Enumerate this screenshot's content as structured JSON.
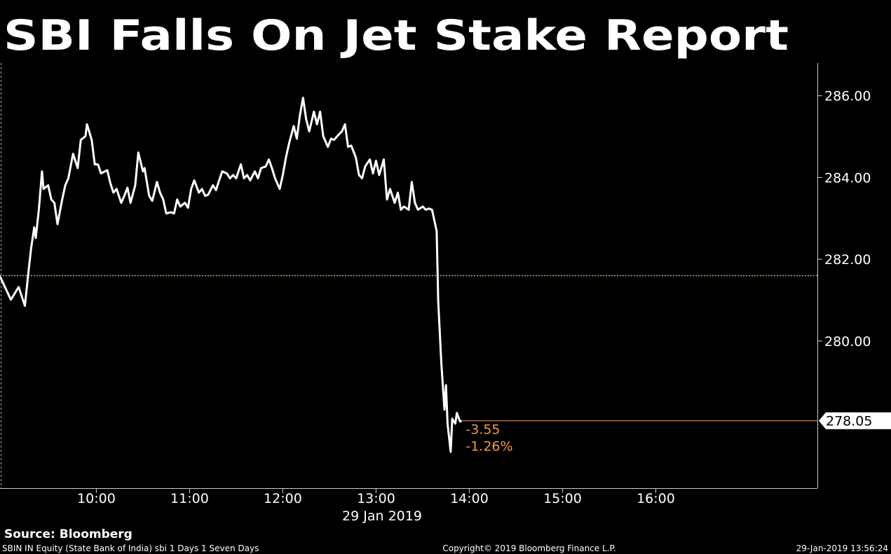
{
  "chart_data": {
    "type": "line",
    "title": "SBI Falls On Jet Stake Report",
    "x_label": "29 Jan 2019",
    "x": [
      538,
      545,
      550,
      554,
      556,
      558,
      560,
      561,
      563,
      565,
      566,
      569,
      571,
      573,
      575,
      578,
      580,
      582,
      585,
      588,
      590,
      593,
      594,
      597,
      599,
      601,
      603,
      607,
      609,
      611,
      613,
      616,
      618,
      620,
      622,
      625,
      627,
      630,
      631,
      634,
      636,
      639,
      641,
      643,
      645,
      648,
      650,
      652,
      654,
      657,
      659,
      661,
      663,
      666,
      668,
      670,
      672,
      675,
      677,
      679,
      681,
      684,
      686,
      688,
      690,
      693,
      695,
      697,
      699,
      702,
      704,
      706,
      709,
      711,
      713,
      715,
      718,
      720,
      722,
      724,
      727,
      729,
      731,
      733,
      735,
      737,
      740,
      742,
      744,
      746,
      749,
      751,
      753,
      755,
      758,
      760,
      762,
      764,
      767,
      769,
      771,
      773,
      776,
      778,
      780,
      782,
      785,
      787,
      789,
      792,
      794,
      796,
      798,
      801,
      803,
      805,
      807,
      810,
      812,
      814,
      816,
      819,
      820,
      822,
      824,
      825,
      826,
      828,
      829,
      831,
      832,
      834,
      835
    ],
    "series": [
      {
        "color": "#ffffff",
        "values": [
          281.58,
          281.01,
          281.32,
          280.86,
          281.58,
          282.26,
          282.78,
          282.52,
          283.21,
          284.15,
          283.72,
          283.81,
          283.46,
          283.38,
          282.86,
          283.46,
          283.81,
          283.98,
          284.58,
          284.23,
          284.92,
          285.01,
          285.3,
          284.92,
          284.32,
          284.32,
          284.1,
          284.18,
          283.86,
          283.63,
          283.72,
          283.38,
          283.55,
          283.75,
          283.38,
          283.81,
          284.61,
          284.15,
          284.23,
          283.55,
          283.43,
          283.89,
          283.63,
          283.46,
          283.12,
          283.15,
          283.12,
          283.46,
          283.29,
          283.38,
          283.26,
          283.72,
          283.93,
          283.63,
          283.72,
          283.55,
          283.58,
          283.81,
          283.69,
          283.93,
          284.15,
          284.1,
          283.98,
          284.06,
          283.98,
          284.32,
          283.98,
          284.06,
          283.93,
          284.15,
          283.98,
          284.23,
          284.27,
          284.44,
          284.23,
          283.98,
          283.72,
          284.06,
          284.49,
          284.83,
          285.26,
          284.95,
          285.52,
          285.95,
          285.43,
          285.13,
          285.61,
          285.3,
          285.61,
          285.01,
          284.75,
          284.95,
          284.92,
          285.01,
          285.13,
          285.3,
          284.75,
          284.78,
          284.49,
          284.06,
          283.98,
          284.27,
          284.44,
          284.1,
          284.41,
          284.06,
          284.44,
          283.46,
          283.72,
          283.38,
          283.63,
          283.21,
          283.29,
          283.21,
          283.89,
          283.38,
          283.21,
          283.29,
          283.21,
          283.24,
          283.21,
          282.69,
          280.98,
          279.44,
          278.32,
          278.92,
          277.98,
          277.29,
          278.1,
          277.98,
          278.24,
          278.03,
          278.05
        ]
      }
    ],
    "xlim": [
      538,
      1064
    ],
    "xticks": [
      {
        "value": 600,
        "label": "10:00"
      },
      {
        "value": 660,
        "label": "11:00"
      },
      {
        "value": 720,
        "label": "12:00"
      },
      {
        "value": 780,
        "label": "13:00"
      },
      {
        "value": 840,
        "label": "14:00"
      },
      {
        "value": 900,
        "label": "15:00"
      },
      {
        "value": 960,
        "label": "16:00"
      }
    ],
    "ylim": [
      276.4,
      286.8
    ],
    "yticks": [
      {
        "value": 280,
        "label": "280.00"
      },
      {
        "value": 282,
        "label": "282.00"
      },
      {
        "value": 284,
        "label": "284.00"
      },
      {
        "value": 286,
        "label": "286.00"
      }
    ],
    "reference_line": {
      "value": 281.6,
      "color": "#f0a050"
    },
    "last_line_color": "#f0a070",
    "annotations": [
      "-3.55",
      "-1.26%"
    ],
    "annotation_color": "#f39a3c",
    "grid": false
  },
  "footer": {
    "source": "Source: Bloomberg",
    "left": "SBIN IN Equity (State Bank of India) sbi 1 Days 1 Seven Days",
    "center": "Copyright© 2019 Bloomberg Finance L.P.",
    "right": "29-Jan-2019 13:56:24"
  }
}
